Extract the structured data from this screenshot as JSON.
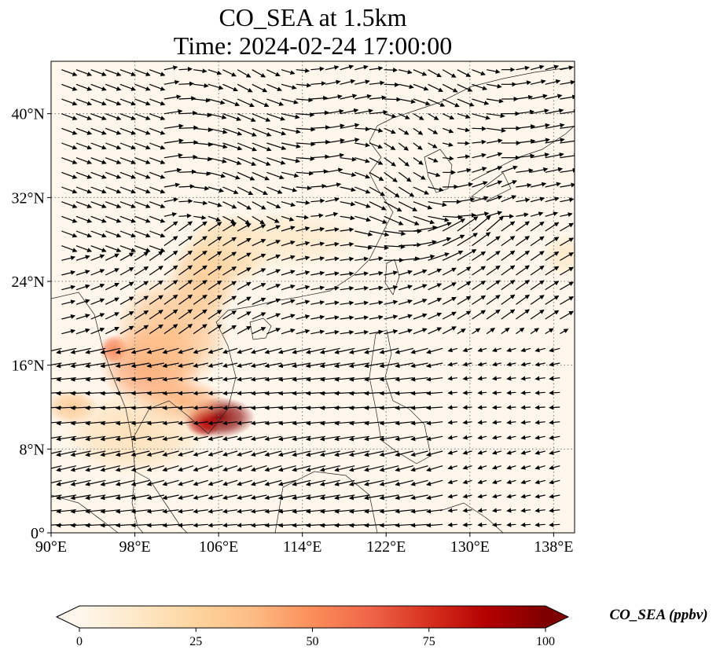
{
  "title_line1": "CO_SEA at 1.5km",
  "title_line2": "Time: 2024-02-24 17:00:00",
  "map": {
    "lon_range": [
      90,
      140
    ],
    "lat_range": [
      0,
      45
    ],
    "x_ticks": [
      {
        "value": 90,
        "label": "90°E"
      },
      {
        "value": 98,
        "label": "98°E"
      },
      {
        "value": 106,
        "label": "106°E"
      },
      {
        "value": 114,
        "label": "114°E"
      },
      {
        "value": 122,
        "label": "122°E"
      },
      {
        "value": 130,
        "label": "130°E"
      },
      {
        "value": 138,
        "label": "138°E"
      }
    ],
    "y_ticks": [
      {
        "value": 0,
        "label": "0°"
      },
      {
        "value": 8,
        "label": "8°N"
      },
      {
        "value": 16,
        "label": "16°N"
      },
      {
        "value": 24,
        "label": "24°N"
      },
      {
        "value": 32,
        "label": "32°N"
      },
      {
        "value": 40,
        "label": "40°N"
      }
    ],
    "gridlines": true,
    "grid_style": "dotted",
    "vectors": "wind vectors (black arrows)",
    "concentration_blobs": [
      {
        "lon": 106.0,
        "lat": 11.0,
        "value": 98,
        "rx": 2.5,
        "ry": 1.4
      },
      {
        "lon": 104.5,
        "lat": 10.5,
        "value": 85,
        "rx": 1.2,
        "ry": 1.0
      },
      {
        "lon": 96.0,
        "lat": 17.5,
        "value": 55,
        "rx": 1.0,
        "ry": 1.0
      },
      {
        "lon": 99.5,
        "lat": 16.0,
        "value": 45,
        "rx": 3.5,
        "ry": 3.0
      },
      {
        "lon": 101.5,
        "lat": 19.0,
        "value": 35,
        "rx": 4.0,
        "ry": 4.0
      },
      {
        "lon": 104.5,
        "lat": 24.0,
        "value": 30,
        "rx": 2.5,
        "ry": 3.0
      },
      {
        "lon": 107.0,
        "lat": 27.0,
        "value": 25,
        "rx": 3.0,
        "ry": 2.5
      },
      {
        "lon": 92.0,
        "lat": 12.0,
        "value": 30,
        "rx": 1.8,
        "ry": 1.2
      },
      {
        "lon": 102.5,
        "lat": 12.5,
        "value": 40,
        "rx": 3.0,
        "ry": 1.6
      },
      {
        "lon": 98.0,
        "lat": 9.5,
        "value": 18,
        "rx": 5.0,
        "ry": 3.0
      },
      {
        "lon": 112.0,
        "lat": 28.0,
        "value": 12,
        "rx": 6.0,
        "ry": 2.0
      },
      {
        "lon": 139.0,
        "lat": 26.5,
        "value": 12,
        "rx": 1.5,
        "ry": 1.5
      }
    ]
  },
  "colorbar": {
    "label": "CO_SEA (ppbv)",
    "ticks": [
      {
        "value": 0,
        "label": "0"
      },
      {
        "value": 25,
        "label": "25"
      },
      {
        "value": 50,
        "label": "50"
      },
      {
        "value": 75,
        "label": "75"
      },
      {
        "value": 100,
        "label": "100"
      }
    ],
    "range": [
      0,
      100
    ],
    "colormap": "OrRd",
    "extend": "both",
    "colors": [
      "#fff7ec",
      "#fee8c8",
      "#fdd49e",
      "#fdbb84",
      "#fc8d59",
      "#ef6548",
      "#d7301f",
      "#b30000",
      "#7f0000"
    ]
  }
}
